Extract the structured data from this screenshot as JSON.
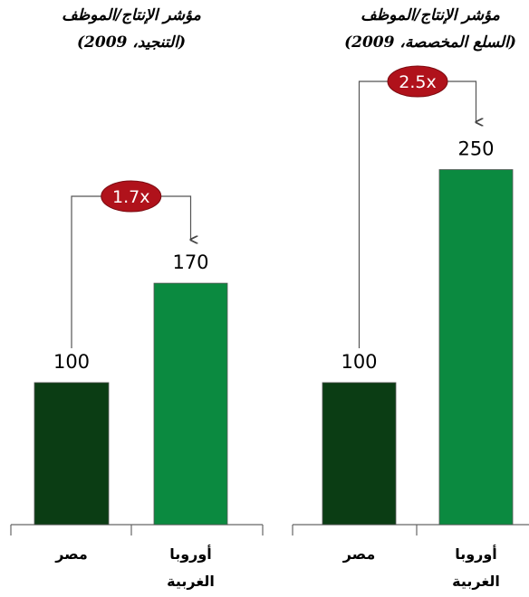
{
  "chart_data": [
    {
      "type": "bar",
      "title": "مؤشر الإنتاج/الموظف",
      "subtitle": "(التنجيد، 2009)",
      "categories": [
        "مصر",
        "أوروبا الغربية"
      ],
      "values": [
        100,
        170
      ],
      "colors": [
        "#0b3d14",
        "#0b8a40"
      ],
      "annotation": "1.7x",
      "annotation_color": "#b0121b"
    },
    {
      "type": "bar",
      "title": "مؤشر الإنتاج/الموظف",
      "subtitle": "(السلع المخصصة، 2009)",
      "categories": [
        "مصر",
        "أوروبا الغربية"
      ],
      "values": [
        100,
        250
      ],
      "colors": [
        "#0b3d14",
        "#0b8a40"
      ],
      "annotation": "2.5x",
      "annotation_color": "#b0121b"
    }
  ]
}
